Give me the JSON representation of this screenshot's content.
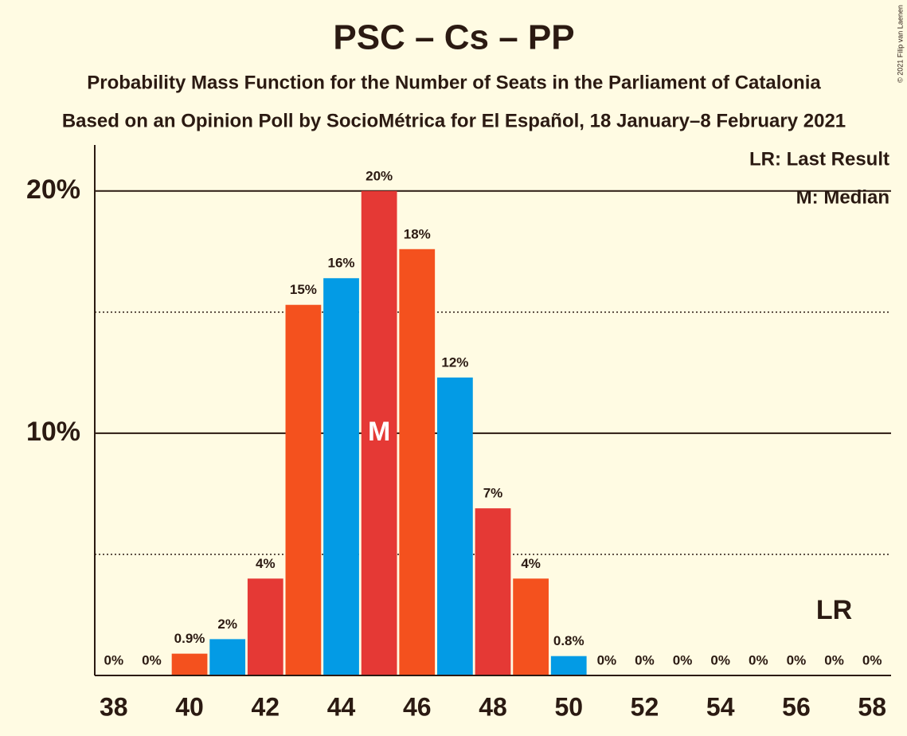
{
  "chart_data": {
    "type": "bar",
    "title": "PSC – Cs – PP",
    "subtitle": "Probability Mass Function for the Number of Seats in the Parliament of Catalonia",
    "subtitle2": "Based on an Opinion Poll by SocioMétrica for El Español, 18 January–8 February 2021",
    "copyright": "© 2021 Filip van Laenen",
    "x": [
      38,
      39,
      40,
      41,
      42,
      43,
      44,
      45,
      46,
      47,
      48,
      49,
      50,
      51,
      52,
      53,
      54,
      55,
      56,
      57,
      58
    ],
    "values": [
      0,
      0,
      0.9,
      1.5,
      4.0,
      15.3,
      16.4,
      20.0,
      17.6,
      12.3,
      6.9,
      4.0,
      0.8,
      0,
      0,
      0,
      0,
      0,
      0,
      0,
      0
    ],
    "value_labels": [
      "0%",
      "0%",
      "0.9%",
      "2%",
      "4%",
      "15%",
      "16%",
      "20%",
      "18%",
      "12%",
      "7%",
      "4%",
      "0.8%",
      "0%",
      "0%",
      "0%",
      "0%",
      "0%",
      "0%",
      "0%",
      "0%"
    ],
    "colors": [
      "#e53935",
      "#f4511e",
      "#f4511e",
      "#039be5",
      "#e53935",
      "#f4511e",
      "#039be5",
      "#e53935",
      "#f4511e",
      "#039be5",
      "#e53935",
      "#f4511e",
      "#039be5",
      "#e53935",
      "#f4511e",
      "#039be5",
      "#e53935",
      "#f4511e",
      "#039be5",
      "#e53935",
      "#f4511e"
    ],
    "xlim": [
      37.5,
      58.5
    ],
    "xticks": [
      38,
      40,
      42,
      44,
      46,
      48,
      50,
      52,
      54,
      56,
      58
    ],
    "ylim": [
      0,
      21.9
    ],
    "yticks": [
      {
        "value": 10,
        "label": "10%"
      },
      {
        "value": 20,
        "label": "20%"
      }
    ],
    "minor_yticks": [
      5,
      15
    ],
    "median": 45,
    "median_label": "M",
    "last_result": 57,
    "last_result_label": "LR",
    "legend": [
      "LR: Last Result",
      "M: Median"
    ]
  }
}
